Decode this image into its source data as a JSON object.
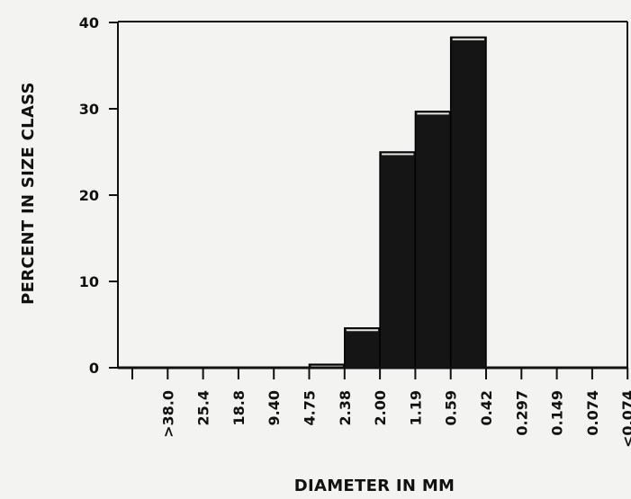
{
  "chart_data": {
    "type": "bar",
    "title": "",
    "xlabel": "DIAMETER IN MM",
    "ylabel": "PERCENT IN SIZE CLASS",
    "categories": [
      ">38.0",
      "25.4",
      "18.8",
      "9.40",
      "4.75",
      "2.38",
      "2.00",
      "1.19",
      "0.59",
      "0.42",
      "0.297",
      "0.149",
      "0.074",
      "<0.074"
    ],
    "values": [
      0,
      0,
      0,
      0,
      0,
      0,
      0.4,
      4.6,
      25,
      29.7,
      38.3,
      0,
      0,
      0
    ],
    "ylim": [
      0,
      40
    ],
    "yticks": [
      0,
      10,
      20,
      30,
      40
    ],
    "grid": false,
    "legend": "none",
    "colors": {
      "bar": "#151515",
      "axis": "#111111",
      "highlight": "#e8e8e8"
    }
  }
}
